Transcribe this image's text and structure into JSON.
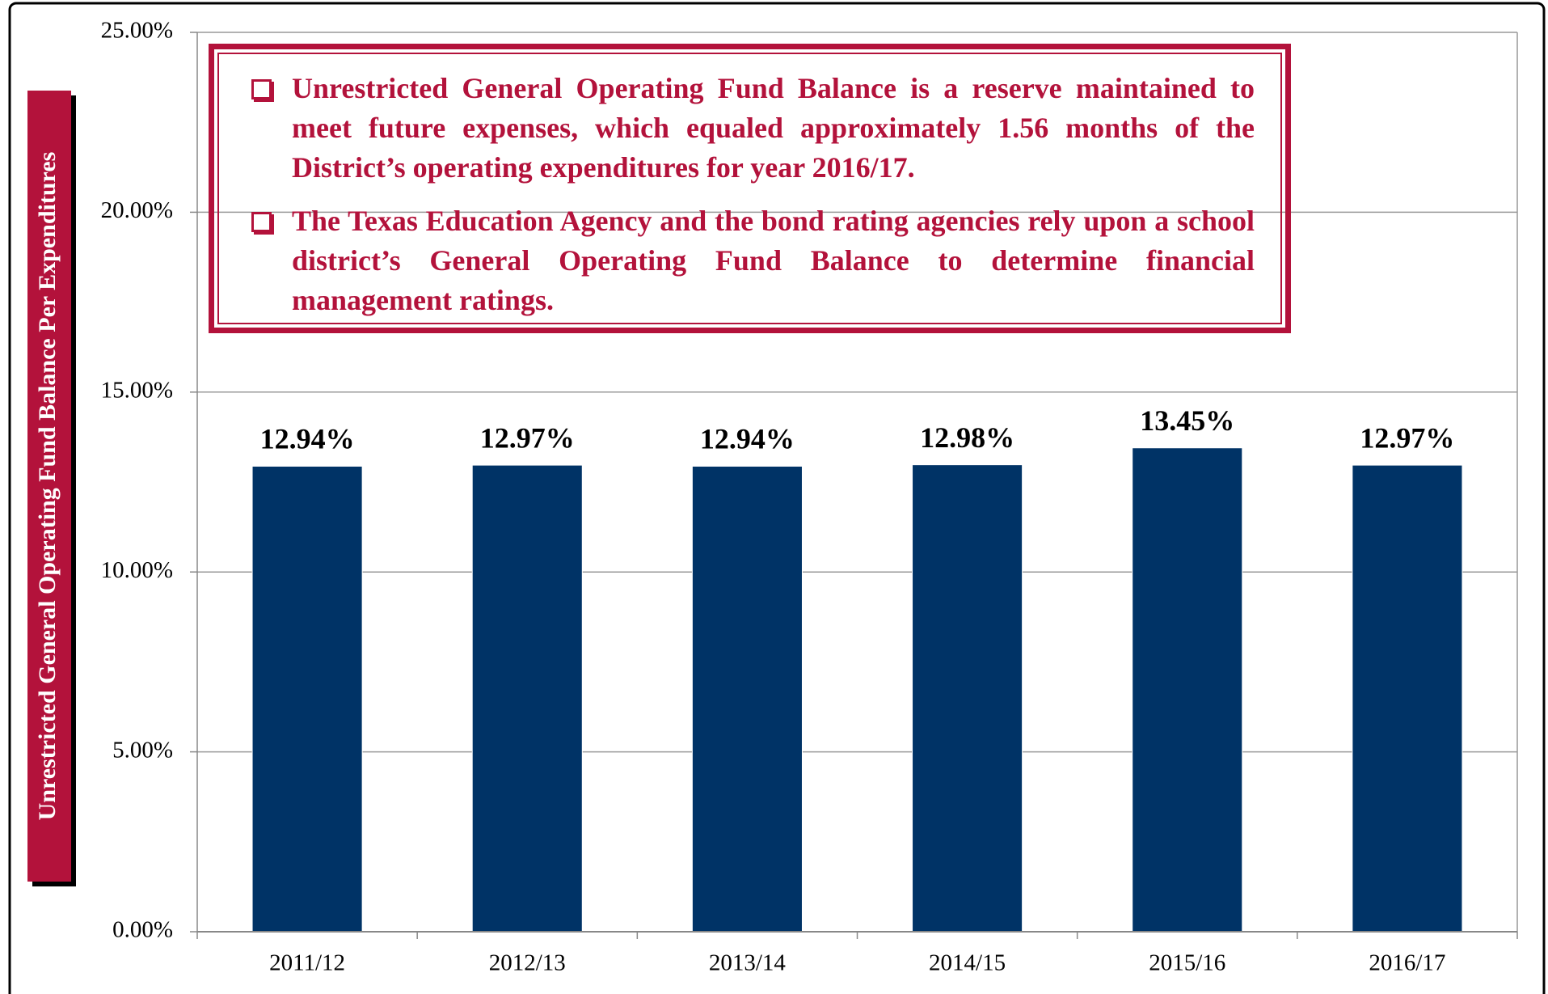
{
  "chart_data": {
    "type": "bar",
    "y_label": "Unrestricted General Operating Fund Balance Per Expenditures",
    "annotations": [
      "Unrestricted General Operating Fund Balance is a reserve maintained to meet future expenses, which equaled approximately 1.56 months of the District’s operating expenditures for year 2016/17.",
      "The Texas Education Agency and the bond rating agencies rely upon a school district’s General Operating Fund Balance to determine financial management ratings."
    ],
    "categories": [
      "2011/12",
      "2012/13",
      "2013/14",
      "2014/15",
      "2015/16",
      "2016/17"
    ],
    "values": [
      12.94,
      12.97,
      12.94,
      12.98,
      13.45,
      12.97
    ],
    "value_labels": [
      "12.94%",
      "12.97%",
      "12.94%",
      "12.98%",
      "13.45%",
      "12.97%"
    ],
    "color": "#003366",
    "ylim": [
      0,
      25
    ],
    "yticks": [
      {
        "value": 0,
        "label": "0.00%"
      },
      {
        "value": 5,
        "label": "5.00%"
      },
      {
        "value": 10,
        "label": "10.00%"
      },
      {
        "value": 15,
        "label": "15.00%"
      },
      {
        "value": 20,
        "label": "20.00%"
      },
      {
        "value": 25,
        "label": "25.00%"
      }
    ],
    "grid": true
  }
}
